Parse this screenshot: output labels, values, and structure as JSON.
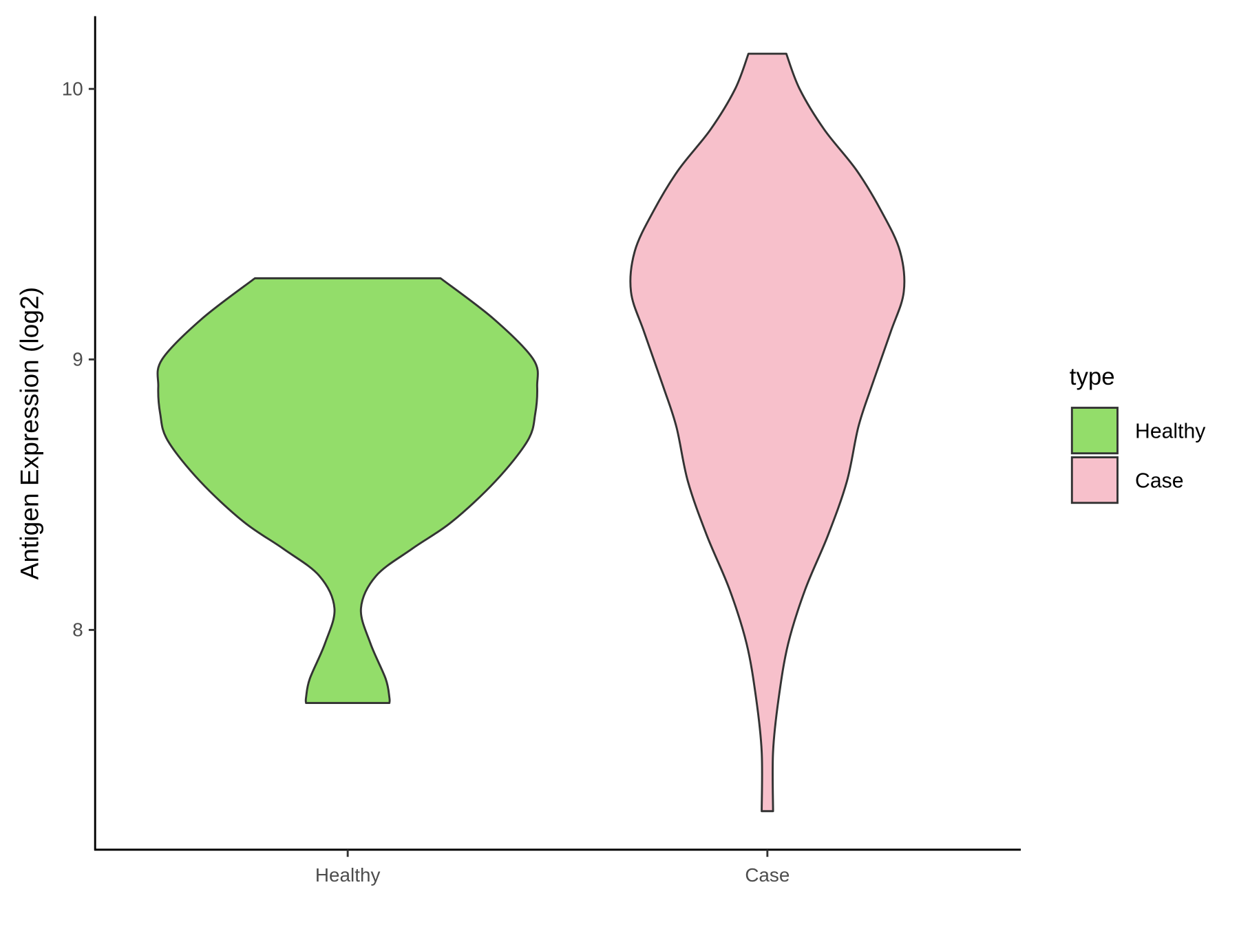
{
  "chart_data": {
    "type": "violin",
    "title": "",
    "xlabel": "",
    "ylabel": "Antigen Expression (log2)",
    "categories": [
      "Healthy",
      "Case"
    ],
    "y_ticks": [
      8,
      9,
      10
    ],
    "y_tick_labels": [
      "8",
      "9",
      "10"
    ],
    "ylim": [
      7.2,
      10.27
    ],
    "grid": false,
    "legend": {
      "title": "type",
      "position": "right",
      "entries": [
        "Healthy",
        "Case"
      ]
    },
    "series": [
      {
        "name": "Healthy",
        "color": "#93DD6A",
        "y_range": [
          7.73,
          9.3
        ],
        "profile": [
          [
            9.3,
            0.49
          ],
          [
            9.15,
            0.77
          ],
          [
            9.0,
            0.98
          ],
          [
            8.9,
            1.0
          ],
          [
            8.8,
            0.99
          ],
          [
            8.7,
            0.95
          ],
          [
            8.55,
            0.78
          ],
          [
            8.4,
            0.55
          ],
          [
            8.3,
            0.34
          ],
          [
            8.2,
            0.15
          ],
          [
            8.08,
            0.07
          ],
          [
            7.95,
            0.12
          ],
          [
            7.82,
            0.2
          ],
          [
            7.75,
            0.22
          ],
          [
            7.73,
            0.22
          ]
        ]
      },
      {
        "name": "Case",
        "color": "#F7C0CB",
        "y_range": [
          7.33,
          10.13
        ],
        "profile": [
          [
            10.13,
            0.1
          ],
          [
            10.0,
            0.17
          ],
          [
            9.85,
            0.3
          ],
          [
            9.7,
            0.47
          ],
          [
            9.55,
            0.6
          ],
          [
            9.4,
            0.7
          ],
          [
            9.25,
            0.72
          ],
          [
            9.1,
            0.65
          ],
          [
            8.9,
            0.55
          ],
          [
            8.75,
            0.48
          ],
          [
            8.55,
            0.42
          ],
          [
            8.35,
            0.32
          ],
          [
            8.15,
            0.2
          ],
          [
            7.95,
            0.11
          ],
          [
            7.75,
            0.06
          ],
          [
            7.55,
            0.03
          ],
          [
            7.33,
            0.03
          ]
        ]
      }
    ]
  }
}
